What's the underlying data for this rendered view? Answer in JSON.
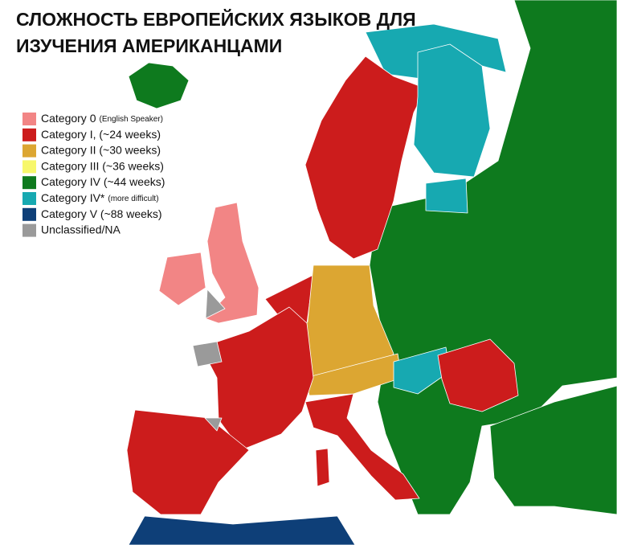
{
  "header": {
    "title_lines": [
      "СЛОЖНОСТЬ ЕВРОПЕЙСКИХ ЯЗЫКОВ ДЛЯ",
      "ИЗУЧЕНИЯ АМЕРИКАНЦАМИ"
    ]
  },
  "legend": {
    "items": [
      {
        "label": "Category 0",
        "note": "(English Speaker)",
        "color": "#f28585"
      },
      {
        "label": "Category I, (~24 weeks)",
        "color": "#cc1c1c"
      },
      {
        "label": "Category II (~30 weeks)",
        "color": "#dca632"
      },
      {
        "label": "Category III (~36 weeks)",
        "color": "#f7f76b"
      },
      {
        "label": "Category IV (~44 weeks)",
        "color": "#0e7a1e"
      },
      {
        "label": "Category IV*",
        "note": "(more difficult)",
        "color": "#17a9b1"
      },
      {
        "label": "Category V (~88 weeks)",
        "color": "#0e3f78"
      },
      {
        "label": "Unclassified/NA",
        "color": "#9a9a9a"
      }
    ]
  }
}
